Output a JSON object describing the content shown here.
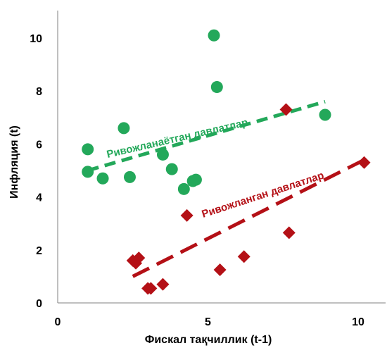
{
  "colors": {
    "developing": "#23a85a",
    "developed": "#b41016",
    "axis": "#7f7f7f"
  },
  "chart_data": {
    "type": "scatter",
    "xlabel": "Фискал тақчиллик (t-1)",
    "ylabel": "Инфляция (t)",
    "xlim": [
      0,
      11
    ],
    "ylim": [
      0,
      11
    ],
    "xticks": [
      "0",
      "5",
      "10"
    ],
    "xtick_values": [
      0,
      5,
      10
    ],
    "yticks": [
      "0",
      "2",
      "4",
      "6",
      "8",
      "10"
    ],
    "ytick_values": [
      0,
      2,
      4,
      6,
      8,
      10
    ],
    "grid": false,
    "series": [
      {
        "name": "Ривожланаётган давлатлар",
        "marker": "circle",
        "color": "#23a85a",
        "points": [
          [
            1.0,
            5.8
          ],
          [
            1.0,
            4.95
          ],
          [
            1.5,
            4.7
          ],
          [
            2.2,
            6.6
          ],
          [
            2.4,
            4.75
          ],
          [
            3.5,
            5.6
          ],
          [
            3.8,
            5.05
          ],
          [
            4.2,
            4.3
          ],
          [
            4.5,
            4.6
          ],
          [
            4.6,
            4.65
          ],
          [
            5.2,
            10.1
          ],
          [
            5.3,
            8.15
          ],
          [
            8.9,
            7.1
          ]
        ],
        "trend": [
          [
            1.0,
            5.0
          ],
          [
            8.9,
            7.6
          ]
        ]
      },
      {
        "name": "Ривожланган давлатлар",
        "marker": "diamond",
        "color": "#b41016",
        "points": [
          [
            2.5,
            1.6
          ],
          [
            2.6,
            1.5
          ],
          [
            2.7,
            1.7
          ],
          [
            3.0,
            0.55
          ],
          [
            3.1,
            0.55
          ],
          [
            3.5,
            0.7
          ],
          [
            4.3,
            3.3
          ],
          [
            5.4,
            1.25
          ],
          [
            6.2,
            1.75
          ],
          [
            7.6,
            7.3
          ],
          [
            7.7,
            2.65
          ],
          [
            10.2,
            5.3
          ]
        ],
        "trend": [
          [
            2.5,
            1.0
          ],
          [
            10.2,
            5.4
          ]
        ]
      }
    ]
  }
}
